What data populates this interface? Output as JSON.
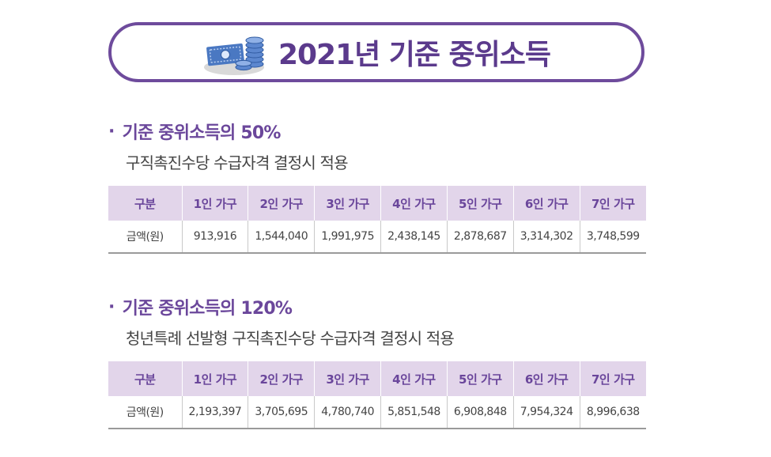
{
  "title": "2021년 기준 중위소득",
  "icon": "money-coins-icon",
  "sections": [
    {
      "heading": "기준 중위소득의 50%",
      "sub": "구직촉진수당 수급자격 결정시 적용",
      "table": {
        "headers": [
          "구분",
          "1인 가구",
          "2인 가구",
          "3인 가구",
          "4인 가구",
          "5인 가구",
          "6인 가구",
          "7인 가구"
        ],
        "rows": [
          [
            "금액(원)",
            "913,916",
            "1,544,040",
            "1,991,975",
            "2,438,145",
            "2,878,687",
            "3,314,302",
            "3,748,599"
          ]
        ]
      }
    },
    {
      "heading": "기준 중위소득의 120%",
      "sub": "청년특례 선발형 구직촉진수당 수급자격 결정시 적용",
      "table": {
        "headers": [
          "구분",
          "1인 가구",
          "2인 가구",
          "3인 가구",
          "4인 가구",
          "5인 가구",
          "6인 가구",
          "7인 가구"
        ],
        "rows": [
          [
            "금액(원)",
            "2,193,397",
            "3,705,695",
            "4,780,740",
            "5,851,548",
            "6,908,848",
            "7,954,324",
            "8,996,638"
          ]
        ]
      }
    }
  ],
  "colors": {
    "accent": "#6e4b9c",
    "header_bg": "#e2d5ea",
    "money_blue": "#4a78c2"
  }
}
